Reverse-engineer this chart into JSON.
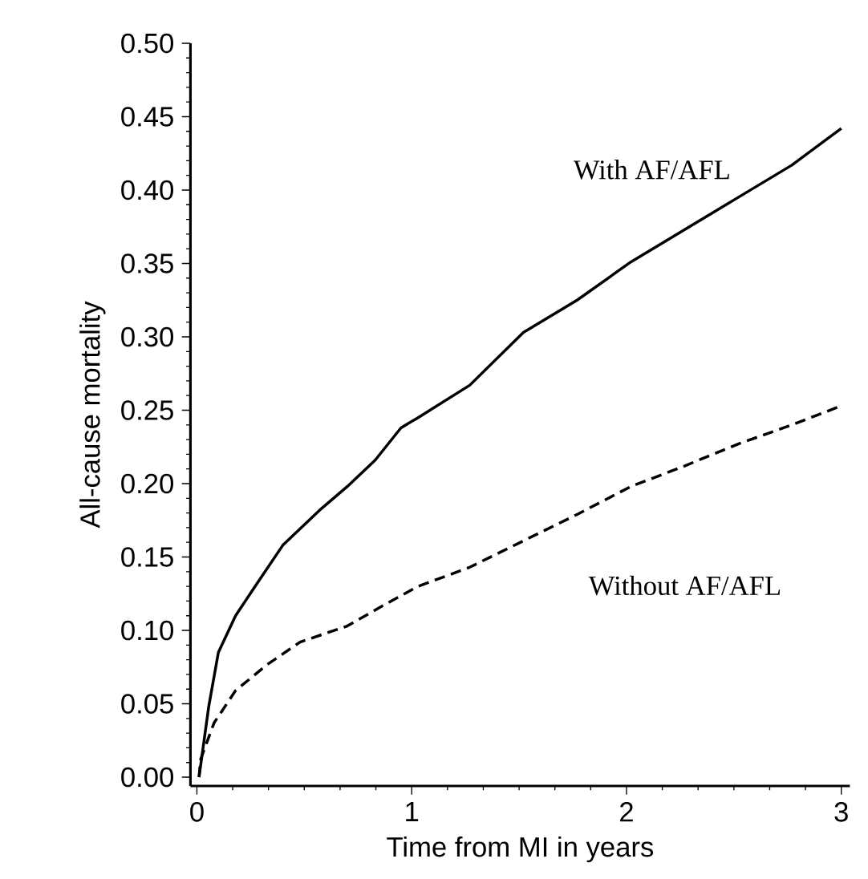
{
  "chart_data": {
    "type": "line",
    "xlabel": "Time from MI in years",
    "ylabel": "All-cause mortality",
    "xlim": [
      -0.03,
      3.04
    ],
    "ylim": [
      -0.006,
      0.5
    ],
    "xticks": [
      0,
      1,
      2,
      3
    ],
    "yticks": [
      {
        "value": 0,
        "label": "0.00"
      },
      {
        "value": 0.05,
        "label": "0.05"
      },
      {
        "value": 0.1,
        "label": "0.10"
      },
      {
        "value": 0.15,
        "label": "0.15"
      },
      {
        "value": 0.2,
        "label": "0.20"
      },
      {
        "value": 0.25,
        "label": "0.25"
      },
      {
        "value": 0.3,
        "label": "0.30"
      },
      {
        "value": 0.35,
        "label": "0.35"
      },
      {
        "value": 0.4,
        "label": "0.40"
      },
      {
        "value": 0.45,
        "label": "0.45"
      },
      {
        "value": 0.5,
        "label": "0.50"
      }
    ],
    "grid": false,
    "marker": "none",
    "series": [
      {
        "color": "#000000",
        "line_style": "solid",
        "x": [
          0.01,
          0.055,
          0.1,
          0.18,
          0.28,
          0.4,
          0.58,
          0.7,
          0.83,
          0.95,
          1.03,
          1.27,
          1.52,
          1.77,
          2.02,
          2.27,
          2.52,
          2.77,
          3.0
        ],
        "values": [
          0.0,
          0.048,
          0.085,
          0.11,
          0.132,
          0.158,
          0.183,
          0.198,
          0.216,
          0.238,
          0.245,
          0.267,
          0.303,
          0.325,
          0.351,
          0.373,
          0.395,
          0.417,
          0.442
        ]
      },
      {
        "color": "#000000",
        "line_style": "dashed",
        "x": [
          0.01,
          0.017,
          0.08,
          0.18,
          0.33,
          0.48,
          0.7,
          0.88,
          1.03,
          1.27,
          1.52,
          1.77,
          2.02,
          2.27,
          2.52,
          2.77,
          3.0
        ],
        "values": [
          0.0,
          0.012,
          0.037,
          0.059,
          0.077,
          0.092,
          0.103,
          0.118,
          0.13,
          0.143,
          0.161,
          0.179,
          0.198,
          0.212,
          0.227,
          0.24,
          0.253
        ]
      }
    ],
    "annotations": [
      "With AF/AFL",
      "Without AF/AFL"
    ]
  }
}
